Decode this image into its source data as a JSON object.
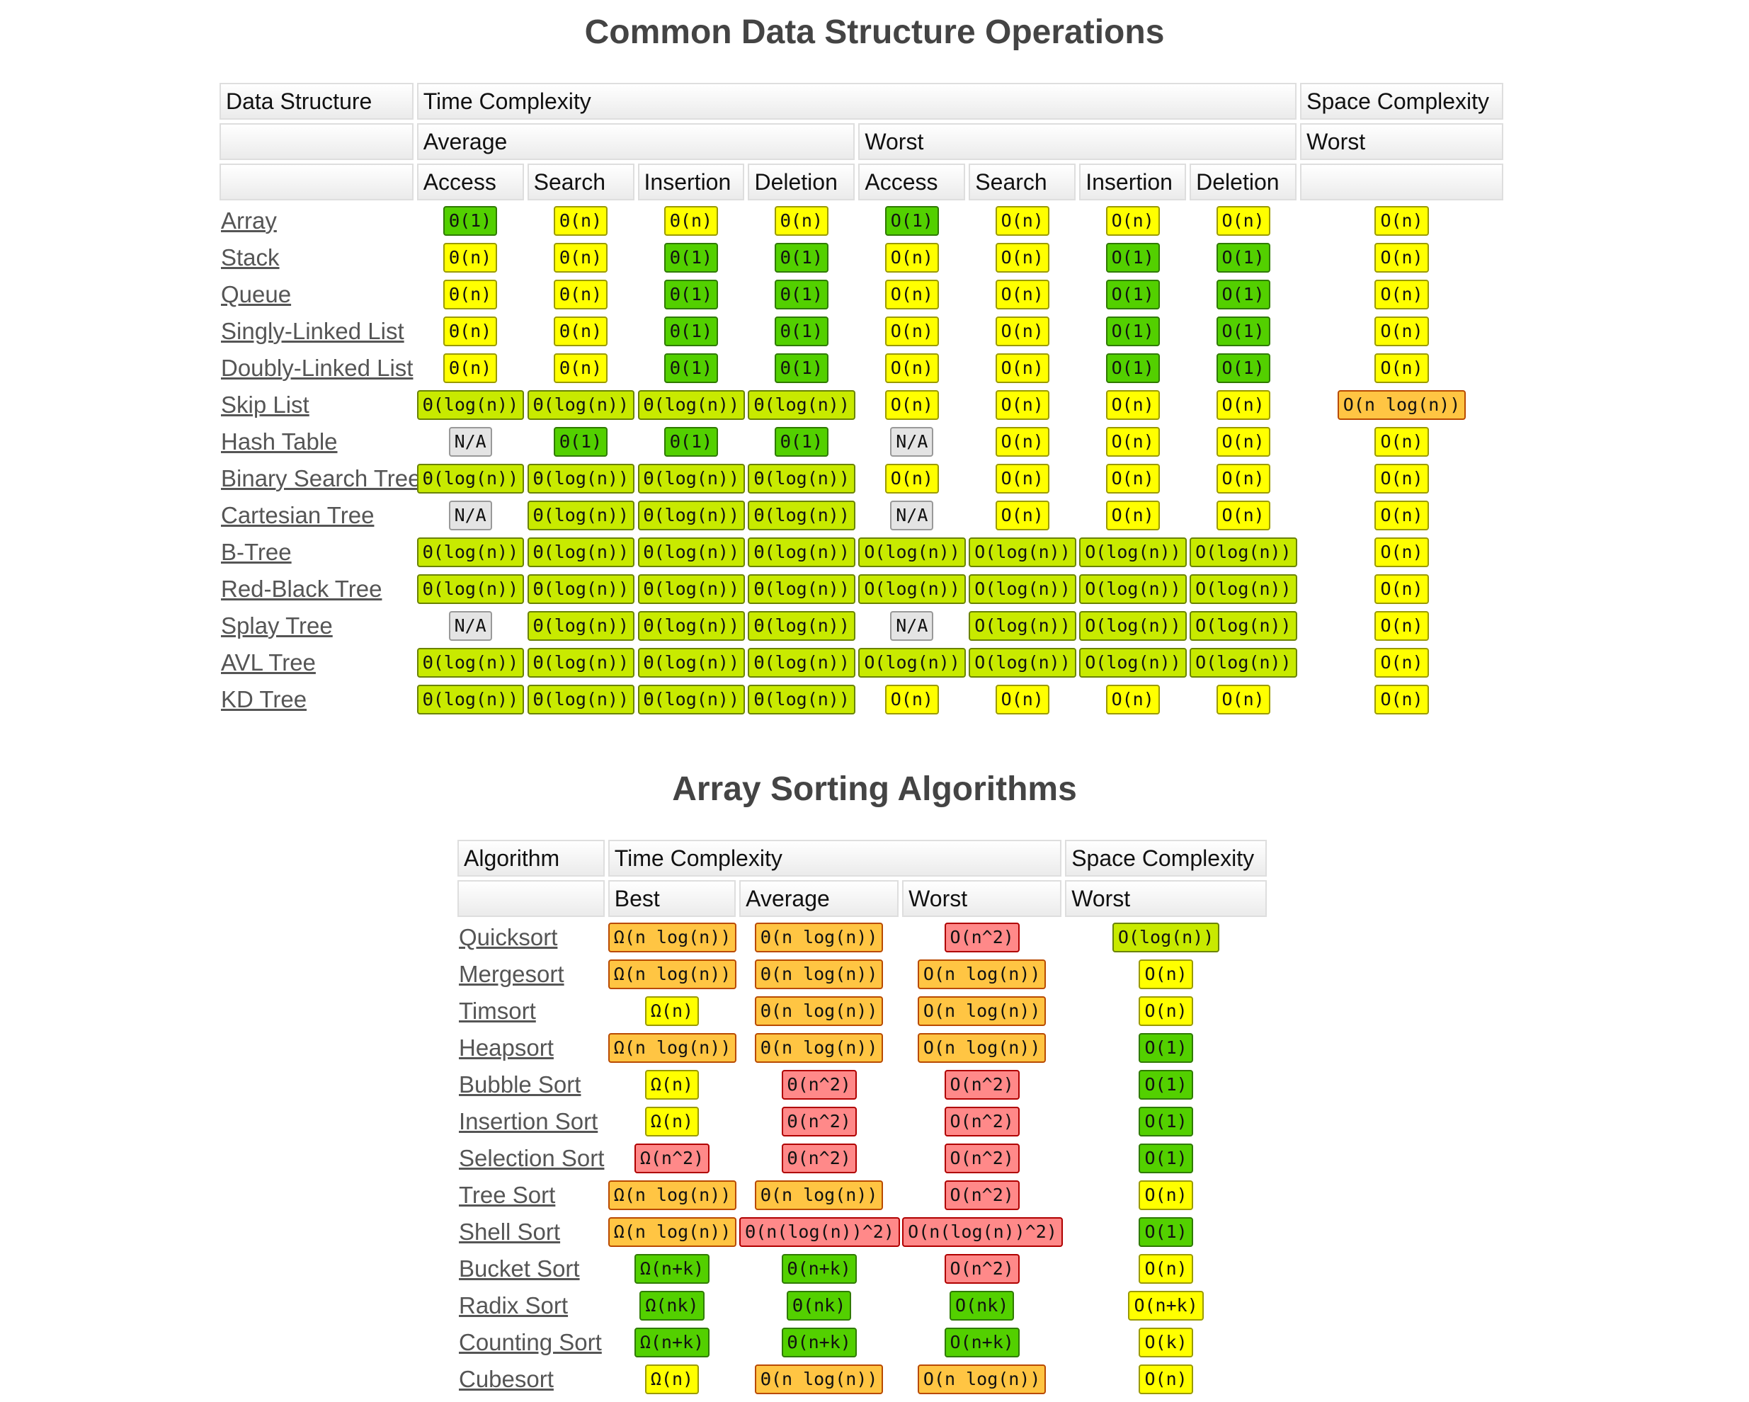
{
  "ds": {
    "title": "Common Data Structure Operations",
    "headers": {
      "col_name": "Data Structure",
      "time": "Time Complexity",
      "space": "Space Complexity",
      "average": "Average",
      "worst": "Worst",
      "space_worst": "Worst",
      "ops": [
        "Access",
        "Search",
        "Insertion",
        "Deletion",
        "Access",
        "Search",
        "Insertion",
        "Deletion"
      ]
    },
    "rows": [
      {
        "name": "Array",
        "cells": [
          [
            "Θ(1)",
            "green"
          ],
          [
            "Θ(n)",
            "yellow"
          ],
          [
            "Θ(n)",
            "yellow"
          ],
          [
            "Θ(n)",
            "yellow"
          ],
          [
            "O(1)",
            "green"
          ],
          [
            "O(n)",
            "yellow"
          ],
          [
            "O(n)",
            "yellow"
          ],
          [
            "O(n)",
            "yellow"
          ],
          [
            "O(n)",
            "yellow"
          ]
        ]
      },
      {
        "name": "Stack",
        "cells": [
          [
            "Θ(n)",
            "yellow"
          ],
          [
            "Θ(n)",
            "yellow"
          ],
          [
            "Θ(1)",
            "green"
          ],
          [
            "Θ(1)",
            "green"
          ],
          [
            "O(n)",
            "yellow"
          ],
          [
            "O(n)",
            "yellow"
          ],
          [
            "O(1)",
            "green"
          ],
          [
            "O(1)",
            "green"
          ],
          [
            "O(n)",
            "yellow"
          ]
        ]
      },
      {
        "name": "Queue",
        "cells": [
          [
            "Θ(n)",
            "yellow"
          ],
          [
            "Θ(n)",
            "yellow"
          ],
          [
            "Θ(1)",
            "green"
          ],
          [
            "Θ(1)",
            "green"
          ],
          [
            "O(n)",
            "yellow"
          ],
          [
            "O(n)",
            "yellow"
          ],
          [
            "O(1)",
            "green"
          ],
          [
            "O(1)",
            "green"
          ],
          [
            "O(n)",
            "yellow"
          ]
        ]
      },
      {
        "name": "Singly-Linked List",
        "cells": [
          [
            "Θ(n)",
            "yellow"
          ],
          [
            "Θ(n)",
            "yellow"
          ],
          [
            "Θ(1)",
            "green"
          ],
          [
            "Θ(1)",
            "green"
          ],
          [
            "O(n)",
            "yellow"
          ],
          [
            "O(n)",
            "yellow"
          ],
          [
            "O(1)",
            "green"
          ],
          [
            "O(1)",
            "green"
          ],
          [
            "O(n)",
            "yellow"
          ]
        ]
      },
      {
        "name": "Doubly-Linked List",
        "cells": [
          [
            "Θ(n)",
            "yellow"
          ],
          [
            "Θ(n)",
            "yellow"
          ],
          [
            "Θ(1)",
            "green"
          ],
          [
            "Θ(1)",
            "green"
          ],
          [
            "O(n)",
            "yellow"
          ],
          [
            "O(n)",
            "yellow"
          ],
          [
            "O(1)",
            "green"
          ],
          [
            "O(1)",
            "green"
          ],
          [
            "O(n)",
            "yellow"
          ]
        ]
      },
      {
        "name": "Skip List",
        "cells": [
          [
            "Θ(log(n))",
            "lgreen"
          ],
          [
            "Θ(log(n))",
            "lgreen"
          ],
          [
            "Θ(log(n))",
            "lgreen"
          ],
          [
            "Θ(log(n))",
            "lgreen"
          ],
          [
            "O(n)",
            "yellow"
          ],
          [
            "O(n)",
            "yellow"
          ],
          [
            "O(n)",
            "yellow"
          ],
          [
            "O(n)",
            "yellow"
          ],
          [
            "O(n log(n))",
            "orange"
          ]
        ]
      },
      {
        "name": "Hash Table",
        "cells": [
          [
            "N/A",
            "gray"
          ],
          [
            "Θ(1)",
            "green"
          ],
          [
            "Θ(1)",
            "green"
          ],
          [
            "Θ(1)",
            "green"
          ],
          [
            "N/A",
            "gray"
          ],
          [
            "O(n)",
            "yellow"
          ],
          [
            "O(n)",
            "yellow"
          ],
          [
            "O(n)",
            "yellow"
          ],
          [
            "O(n)",
            "yellow"
          ]
        ]
      },
      {
        "name": "Binary Search Tree",
        "cells": [
          [
            "Θ(log(n))",
            "lgreen"
          ],
          [
            "Θ(log(n))",
            "lgreen"
          ],
          [
            "Θ(log(n))",
            "lgreen"
          ],
          [
            "Θ(log(n))",
            "lgreen"
          ],
          [
            "O(n)",
            "yellow"
          ],
          [
            "O(n)",
            "yellow"
          ],
          [
            "O(n)",
            "yellow"
          ],
          [
            "O(n)",
            "yellow"
          ],
          [
            "O(n)",
            "yellow"
          ]
        ]
      },
      {
        "name": "Cartesian Tree",
        "cells": [
          [
            "N/A",
            "gray"
          ],
          [
            "Θ(log(n))",
            "lgreen"
          ],
          [
            "Θ(log(n))",
            "lgreen"
          ],
          [
            "Θ(log(n))",
            "lgreen"
          ],
          [
            "N/A",
            "gray"
          ],
          [
            "O(n)",
            "yellow"
          ],
          [
            "O(n)",
            "yellow"
          ],
          [
            "O(n)",
            "yellow"
          ],
          [
            "O(n)",
            "yellow"
          ]
        ]
      },
      {
        "name": "B-Tree",
        "cells": [
          [
            "Θ(log(n))",
            "lgreen"
          ],
          [
            "Θ(log(n))",
            "lgreen"
          ],
          [
            "Θ(log(n))",
            "lgreen"
          ],
          [
            "Θ(log(n))",
            "lgreen"
          ],
          [
            "O(log(n))",
            "lgreen"
          ],
          [
            "O(log(n))",
            "lgreen"
          ],
          [
            "O(log(n))",
            "lgreen"
          ],
          [
            "O(log(n))",
            "lgreen"
          ],
          [
            "O(n)",
            "yellow"
          ]
        ]
      },
      {
        "name": "Red-Black Tree",
        "cells": [
          [
            "Θ(log(n))",
            "lgreen"
          ],
          [
            "Θ(log(n))",
            "lgreen"
          ],
          [
            "Θ(log(n))",
            "lgreen"
          ],
          [
            "Θ(log(n))",
            "lgreen"
          ],
          [
            "O(log(n))",
            "lgreen"
          ],
          [
            "O(log(n))",
            "lgreen"
          ],
          [
            "O(log(n))",
            "lgreen"
          ],
          [
            "O(log(n))",
            "lgreen"
          ],
          [
            "O(n)",
            "yellow"
          ]
        ]
      },
      {
        "name": "Splay Tree",
        "cells": [
          [
            "N/A",
            "gray"
          ],
          [
            "Θ(log(n))",
            "lgreen"
          ],
          [
            "Θ(log(n))",
            "lgreen"
          ],
          [
            "Θ(log(n))",
            "lgreen"
          ],
          [
            "N/A",
            "gray"
          ],
          [
            "O(log(n))",
            "lgreen"
          ],
          [
            "O(log(n))",
            "lgreen"
          ],
          [
            "O(log(n))",
            "lgreen"
          ],
          [
            "O(n)",
            "yellow"
          ]
        ]
      },
      {
        "name": "AVL Tree",
        "cells": [
          [
            "Θ(log(n))",
            "lgreen"
          ],
          [
            "Θ(log(n))",
            "lgreen"
          ],
          [
            "Θ(log(n))",
            "lgreen"
          ],
          [
            "Θ(log(n))",
            "lgreen"
          ],
          [
            "O(log(n))",
            "lgreen"
          ],
          [
            "O(log(n))",
            "lgreen"
          ],
          [
            "O(log(n))",
            "lgreen"
          ],
          [
            "O(log(n))",
            "lgreen"
          ],
          [
            "O(n)",
            "yellow"
          ]
        ]
      },
      {
        "name": "KD Tree",
        "cells": [
          [
            "Θ(log(n))",
            "lgreen"
          ],
          [
            "Θ(log(n))",
            "lgreen"
          ],
          [
            "Θ(log(n))",
            "lgreen"
          ],
          [
            "Θ(log(n))",
            "lgreen"
          ],
          [
            "O(n)",
            "yellow"
          ],
          [
            "O(n)",
            "yellow"
          ],
          [
            "O(n)",
            "yellow"
          ],
          [
            "O(n)",
            "yellow"
          ],
          [
            "O(n)",
            "yellow"
          ]
        ]
      }
    ]
  },
  "sort": {
    "title": "Array Sorting Algorithms",
    "headers": {
      "col_name": "Algorithm",
      "time": "Time Complexity",
      "space": "Space Complexity",
      "subs": [
        "Best",
        "Average",
        "Worst",
        "Worst"
      ]
    },
    "rows": [
      {
        "name": "Quicksort",
        "cells": [
          [
            "Ω(n log(n))",
            "orange"
          ],
          [
            "Θ(n log(n))",
            "orange"
          ],
          [
            "O(n^2)",
            "red"
          ],
          [
            "O(log(n))",
            "lgreen"
          ]
        ]
      },
      {
        "name": "Mergesort",
        "cells": [
          [
            "Ω(n log(n))",
            "orange"
          ],
          [
            "Θ(n log(n))",
            "orange"
          ],
          [
            "O(n log(n))",
            "orange"
          ],
          [
            "O(n)",
            "yellow"
          ]
        ]
      },
      {
        "name": "Timsort",
        "cells": [
          [
            "Ω(n)",
            "yellow"
          ],
          [
            "Θ(n log(n))",
            "orange"
          ],
          [
            "O(n log(n))",
            "orange"
          ],
          [
            "O(n)",
            "yellow"
          ]
        ]
      },
      {
        "name": "Heapsort",
        "cells": [
          [
            "Ω(n log(n))",
            "orange"
          ],
          [
            "Θ(n log(n))",
            "orange"
          ],
          [
            "O(n log(n))",
            "orange"
          ],
          [
            "O(1)",
            "green"
          ]
        ]
      },
      {
        "name": "Bubble Sort",
        "cells": [
          [
            "Ω(n)",
            "yellow"
          ],
          [
            "Θ(n^2)",
            "red"
          ],
          [
            "O(n^2)",
            "red"
          ],
          [
            "O(1)",
            "green"
          ]
        ]
      },
      {
        "name": "Insertion Sort",
        "cells": [
          [
            "Ω(n)",
            "yellow"
          ],
          [
            "Θ(n^2)",
            "red"
          ],
          [
            "O(n^2)",
            "red"
          ],
          [
            "O(1)",
            "green"
          ]
        ]
      },
      {
        "name": "Selection Sort",
        "cells": [
          [
            "Ω(n^2)",
            "red"
          ],
          [
            "Θ(n^2)",
            "red"
          ],
          [
            "O(n^2)",
            "red"
          ],
          [
            "O(1)",
            "green"
          ]
        ]
      },
      {
        "name": "Tree Sort",
        "cells": [
          [
            "Ω(n log(n))",
            "orange"
          ],
          [
            "Θ(n log(n))",
            "orange"
          ],
          [
            "O(n^2)",
            "red"
          ],
          [
            "O(n)",
            "yellow"
          ]
        ]
      },
      {
        "name": "Shell Sort",
        "cells": [
          [
            "Ω(n log(n))",
            "orange"
          ],
          [
            "Θ(n(log(n))^2)",
            "red"
          ],
          [
            "O(n(log(n))^2)",
            "red"
          ],
          [
            "O(1)",
            "green"
          ]
        ]
      },
      {
        "name": "Bucket Sort",
        "cells": [
          [
            "Ω(n+k)",
            "green"
          ],
          [
            "Θ(n+k)",
            "green"
          ],
          [
            "O(n^2)",
            "red"
          ],
          [
            "O(n)",
            "yellow"
          ]
        ]
      },
      {
        "name": "Radix Sort",
        "cells": [
          [
            "Ω(nk)",
            "green"
          ],
          [
            "Θ(nk)",
            "green"
          ],
          [
            "O(nk)",
            "green"
          ],
          [
            "O(n+k)",
            "yellow"
          ]
        ]
      },
      {
        "name": "Counting Sort",
        "cells": [
          [
            "Ω(n+k)",
            "green"
          ],
          [
            "Θ(n+k)",
            "green"
          ],
          [
            "O(n+k)",
            "green"
          ],
          [
            "O(k)",
            "yellow"
          ]
        ]
      },
      {
        "name": "Cubesort",
        "cells": [
          [
            "Ω(n)",
            "yellow"
          ],
          [
            "Θ(n log(n))",
            "orange"
          ],
          [
            "O(n log(n))",
            "orange"
          ],
          [
            "O(n)",
            "yellow"
          ]
        ]
      }
    ]
  }
}
